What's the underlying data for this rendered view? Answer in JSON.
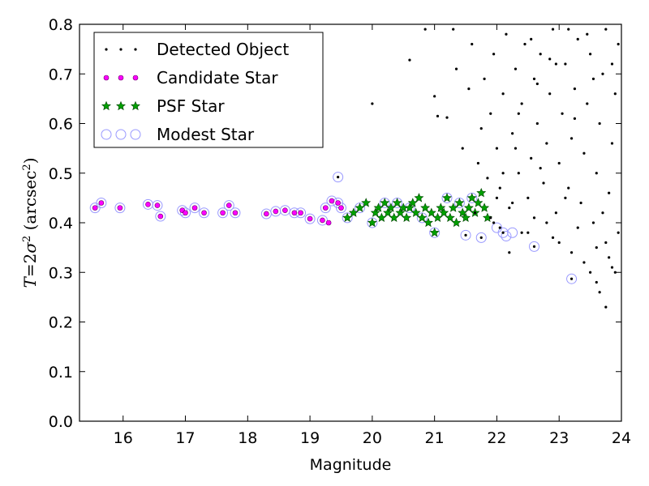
{
  "chart_data": {
    "type": "scatter",
    "xlabel": "Magnitude",
    "ylabel": {
      "prefix": "T",
      "equals": "=",
      "two": "2",
      "sigma": "σ",
      "sq": "2",
      "unit_open": " (arcsec",
      "unit_sq": "2",
      "unit_close": ")"
    },
    "xlim": [
      15.3,
      24
    ],
    "ylim": [
      0.0,
      0.8
    ],
    "xticks": [
      16,
      17,
      18,
      19,
      20,
      21,
      22,
      23,
      24
    ],
    "xtick_labels": [
      "16",
      "17",
      "18",
      "19",
      "20",
      "21",
      "22",
      "23",
      "24"
    ],
    "yticks": [
      0.0,
      0.1,
      0.2,
      0.3,
      0.4,
      0.5,
      0.6,
      0.7,
      0.8
    ],
    "ytick_labels": [
      "0.0",
      "0.1",
      "0.2",
      "0.3",
      "0.4",
      "0.5",
      "0.6",
      "0.7",
      "0.8"
    ],
    "grid": false,
    "legend_position": "upper-left",
    "legend": [
      {
        "name": "Detected Object",
        "marker": "dot",
        "color": "#000000"
      },
      {
        "name": "Candidate Star",
        "marker": "small-circle",
        "color": "#ff00ff"
      },
      {
        "name": "PSF Star",
        "marker": "star",
        "color": "#008000"
      },
      {
        "name": "Modest Star",
        "marker": "open-circle",
        "color": "#9999ff"
      }
    ],
    "series": [
      {
        "name": "Detected Object",
        "points": [
          [
            19.45,
            0.492
          ],
          [
            20.0,
            0.64
          ],
          [
            20.6,
            0.728
          ],
          [
            20.85,
            0.79
          ],
          [
            21.0,
            0.655
          ],
          [
            21.05,
            0.615
          ],
          [
            21.2,
            0.612
          ],
          [
            21.3,
            0.79
          ],
          [
            21.35,
            0.71
          ],
          [
            21.45,
            0.55
          ],
          [
            21.55,
            0.67
          ],
          [
            21.6,
            0.76
          ],
          [
            21.7,
            0.52
          ],
          [
            21.75,
            0.59
          ],
          [
            21.8,
            0.69
          ],
          [
            21.85,
            0.49
          ],
          [
            21.9,
            0.62
          ],
          [
            21.95,
            0.74
          ],
          [
            22.0,
            0.55
          ],
          [
            22.05,
            0.47
          ],
          [
            22.1,
            0.66
          ],
          [
            22.15,
            0.78
          ],
          [
            22.2,
            0.43
          ],
          [
            22.25,
            0.58
          ],
          [
            22.3,
            0.71
          ],
          [
            22.35,
            0.5
          ],
          [
            22.4,
            0.64
          ],
          [
            22.45,
            0.76
          ],
          [
            22.5,
            0.45
          ],
          [
            22.55,
            0.53
          ],
          [
            22.6,
            0.69
          ],
          [
            22.65,
            0.6
          ],
          [
            22.7,
            0.74
          ],
          [
            22.75,
            0.48
          ],
          [
            22.8,
            0.56
          ],
          [
            22.85,
            0.66
          ],
          [
            22.9,
            0.79
          ],
          [
            22.95,
            0.42
          ],
          [
            23.0,
            0.52
          ],
          [
            23.05,
            0.62
          ],
          [
            23.1,
            0.72
          ],
          [
            23.15,
            0.47
          ],
          [
            23.2,
            0.57
          ],
          [
            23.25,
            0.67
          ],
          [
            23.3,
            0.77
          ],
          [
            23.35,
            0.44
          ],
          [
            23.4,
            0.54
          ],
          [
            23.45,
            0.64
          ],
          [
            23.5,
            0.74
          ],
          [
            23.55,
            0.4
          ],
          [
            23.6,
            0.5
          ],
          [
            23.65,
            0.6
          ],
          [
            23.7,
            0.7
          ],
          [
            23.75,
            0.36
          ],
          [
            23.8,
            0.46
          ],
          [
            23.85,
            0.56
          ],
          [
            23.9,
            0.66
          ],
          [
            23.95,
            0.76
          ],
          [
            22.5,
            0.38
          ],
          [
            22.8,
            0.4
          ],
          [
            23.0,
            0.36
          ],
          [
            23.2,
            0.34
          ],
          [
            23.4,
            0.32
          ],
          [
            23.5,
            0.3
          ],
          [
            23.6,
            0.28
          ],
          [
            23.65,
            0.26
          ],
          [
            23.75,
            0.23
          ],
          [
            23.8,
            0.33
          ],
          [
            23.9,
            0.3
          ],
          [
            23.95,
            0.38
          ],
          [
            22.2,
            0.34
          ],
          [
            22.4,
            0.38
          ],
          [
            22.6,
            0.41
          ],
          [
            22.9,
            0.37
          ],
          [
            23.3,
            0.39
          ],
          [
            23.7,
            0.42
          ],
          [
            22.1,
            0.5
          ],
          [
            22.3,
            0.55
          ],
          [
            22.7,
            0.51
          ],
          [
            23.1,
            0.45
          ],
          [
            23.6,
            0.35
          ],
          [
            23.85,
            0.31
          ],
          [
            22.0,
            0.45
          ],
          [
            22.35,
            0.62
          ],
          [
            22.65,
            0.68
          ],
          [
            22.95,
            0.72
          ],
          [
            23.25,
            0.61
          ],
          [
            23.55,
            0.69
          ],
          [
            23.85,
            0.72
          ],
          [
            22.55,
            0.77
          ],
          [
            22.85,
            0.73
          ],
          [
            23.15,
            0.79
          ],
          [
            23.45,
            0.78
          ],
          [
            23.75,
            0.79
          ],
          [
            21.65,
            0.42
          ],
          [
            21.95,
            0.4
          ],
          [
            22.25,
            0.44
          ],
          [
            21.5,
            0.375
          ],
          [
            21.75,
            0.37
          ],
          [
            22.1,
            0.38
          ],
          [
            22.6,
            0.352
          ],
          [
            23.2,
            0.287
          ],
          [
            21.9,
            0.41
          ],
          [
            22.05,
            0.39
          ]
        ]
      },
      {
        "name": "Candidate Star",
        "points": [
          [
            15.55,
            0.43
          ],
          [
            15.65,
            0.44
          ],
          [
            15.95,
            0.43
          ],
          [
            16.4,
            0.437
          ],
          [
            16.55,
            0.435
          ],
          [
            16.6,
            0.413
          ],
          [
            16.95,
            0.425
          ],
          [
            17.0,
            0.42
          ],
          [
            17.15,
            0.43
          ],
          [
            17.3,
            0.42
          ],
          [
            17.6,
            0.42
          ],
          [
            17.7,
            0.435
          ],
          [
            17.8,
            0.42
          ],
          [
            18.3,
            0.418
          ],
          [
            18.45,
            0.423
          ],
          [
            18.6,
            0.425
          ],
          [
            18.75,
            0.42
          ],
          [
            18.85,
            0.42
          ],
          [
            19.0,
            0.408
          ],
          [
            19.2,
            0.405
          ],
          [
            19.25,
            0.43
          ],
          [
            19.35,
            0.444
          ],
          [
            19.45,
            0.44
          ],
          [
            19.5,
            0.43
          ],
          [
            19.3,
            0.4
          ]
        ]
      },
      {
        "name": "PSF Star",
        "points": [
          [
            19.6,
            0.41
          ],
          [
            19.7,
            0.42
          ],
          [
            19.8,
            0.43
          ],
          [
            19.9,
            0.44
          ],
          [
            20.0,
            0.4
          ],
          [
            20.05,
            0.42
          ],
          [
            20.1,
            0.43
          ],
          [
            20.15,
            0.41
          ],
          [
            20.2,
            0.44
          ],
          [
            20.25,
            0.42
          ],
          [
            20.3,
            0.43
          ],
          [
            20.35,
            0.41
          ],
          [
            20.4,
            0.44
          ],
          [
            20.45,
            0.42
          ],
          [
            20.5,
            0.43
          ],
          [
            20.55,
            0.41
          ],
          [
            20.6,
            0.43
          ],
          [
            20.65,
            0.44
          ],
          [
            20.7,
            0.42
          ],
          [
            20.75,
            0.45
          ],
          [
            20.8,
            0.41
          ],
          [
            20.85,
            0.43
          ],
          [
            20.9,
            0.4
          ],
          [
            20.95,
            0.42
          ],
          [
            21.0,
            0.38
          ],
          [
            21.05,
            0.41
          ],
          [
            21.1,
            0.43
          ],
          [
            21.15,
            0.42
          ],
          [
            21.2,
            0.45
          ],
          [
            21.25,
            0.41
          ],
          [
            21.3,
            0.43
          ],
          [
            21.35,
            0.4
          ],
          [
            21.4,
            0.44
          ],
          [
            21.45,
            0.42
          ],
          [
            21.5,
            0.41
          ],
          [
            21.55,
            0.43
          ],
          [
            21.6,
            0.45
          ],
          [
            21.65,
            0.42
          ],
          [
            21.7,
            0.44
          ],
          [
            21.75,
            0.46
          ],
          [
            21.8,
            0.43
          ],
          [
            21.85,
            0.41
          ]
        ]
      },
      {
        "name": "Modest Star",
        "points": [
          [
            15.55,
            0.43
          ],
          [
            15.65,
            0.44
          ],
          [
            15.95,
            0.43
          ],
          [
            16.4,
            0.437
          ],
          [
            16.55,
            0.435
          ],
          [
            16.6,
            0.413
          ],
          [
            16.95,
            0.425
          ],
          [
            17.0,
            0.42
          ],
          [
            17.15,
            0.43
          ],
          [
            17.3,
            0.42
          ],
          [
            17.6,
            0.42
          ],
          [
            17.7,
            0.435
          ],
          [
            17.8,
            0.42
          ],
          [
            18.3,
            0.418
          ],
          [
            18.45,
            0.423
          ],
          [
            18.6,
            0.425
          ],
          [
            18.75,
            0.42
          ],
          [
            18.85,
            0.42
          ],
          [
            19.0,
            0.408
          ],
          [
            19.2,
            0.405
          ],
          [
            19.25,
            0.43
          ],
          [
            19.35,
            0.444
          ],
          [
            19.45,
            0.44
          ],
          [
            19.5,
            0.43
          ],
          [
            19.45,
            0.492
          ],
          [
            19.6,
            0.41
          ],
          [
            19.8,
            0.43
          ],
          [
            20.0,
            0.4
          ],
          [
            20.2,
            0.44
          ],
          [
            20.4,
            0.44
          ],
          [
            20.6,
            0.43
          ],
          [
            20.8,
            0.41
          ],
          [
            21.0,
            0.38
          ],
          [
            21.2,
            0.45
          ],
          [
            21.4,
            0.44
          ],
          [
            21.6,
            0.45
          ],
          [
            21.5,
            0.375
          ],
          [
            21.75,
            0.37
          ],
          [
            22.0,
            0.39
          ],
          [
            22.1,
            0.38
          ],
          [
            22.15,
            0.373
          ],
          [
            22.25,
            0.38
          ],
          [
            22.6,
            0.352
          ],
          [
            23.2,
            0.287
          ]
        ]
      }
    ]
  }
}
